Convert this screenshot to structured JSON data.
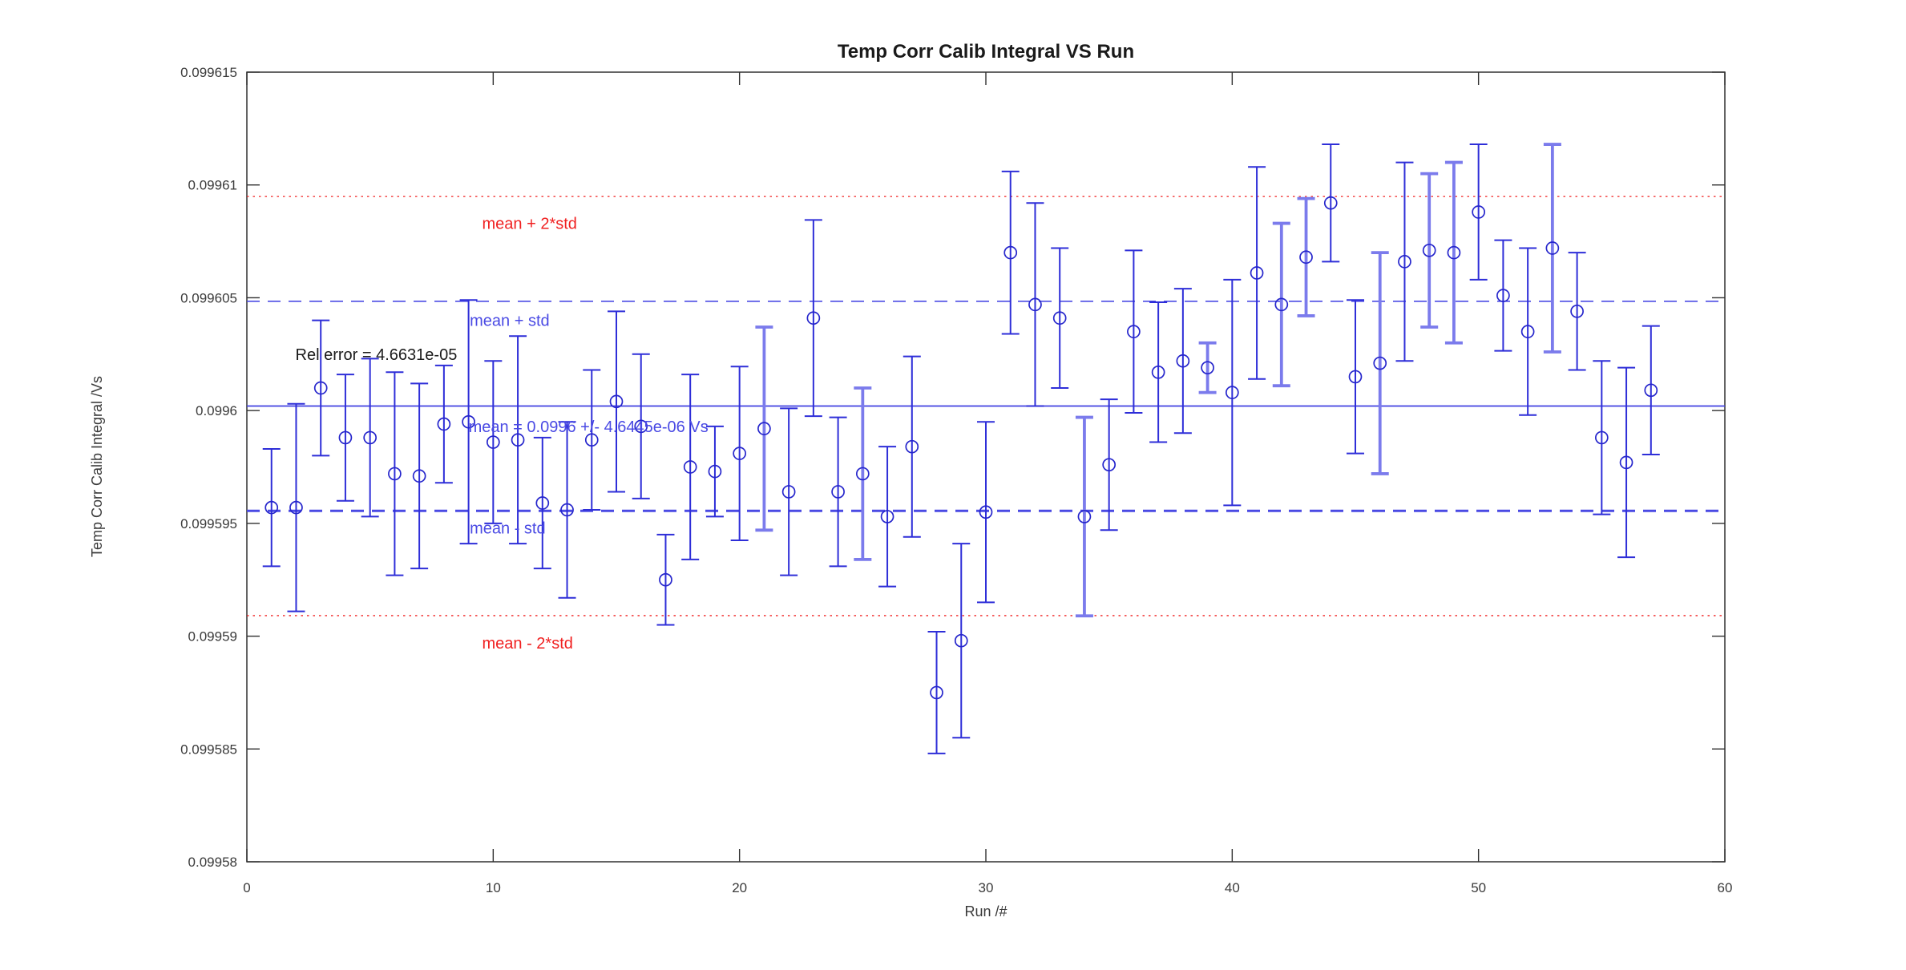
{
  "title": "Temp Corr Calib Integral VS Run",
  "xlabel": "Run /#",
  "ylabel": "Temp Corr Calib Integral /Vs",
  "colors": {
    "data_blue": "#2e2ed8",
    "thick_blue": "#7b7bec",
    "circle_blue": "#2626cc",
    "mean_line_blue": "#4040e0",
    "dash_blue": "#4a4ae4",
    "ref_red": "#f02020",
    "axis": "#303030",
    "tick_text": "#3a3a3a",
    "black_text": "#1a1a1a"
  },
  "chart_data": {
    "type": "scatter",
    "title": "Temp Corr Calib Integral VS Run",
    "xlabel": "Run /#",
    "ylabel": "Temp Corr Calib Integral /Vs",
    "xlim": [
      0,
      60
    ],
    "ylim": [
      0.09958,
      0.099615
    ],
    "x_tick_labels": [
      "0",
      "10",
      "20",
      "30",
      "40",
      "50",
      "60"
    ],
    "x_tick_values": [
      0,
      10,
      20,
      30,
      40,
      50,
      60
    ],
    "y_tick_labels": [
      "0.09958",
      "0.099585",
      "0.09959",
      "0.099595",
      "0.0996",
      "0.099605",
      "0.09961",
      "0.099615"
    ],
    "y_tick_values": [
      0.09958,
      0.099585,
      0.09959,
      0.099595,
      0.0996,
      0.099605,
      0.09961,
      0.099615
    ],
    "grid": false,
    "legend": null,
    "mean": 0.0996002,
    "std": 4.6445e-06,
    "reference_lines": [
      {
        "name": "mean-plus-2std-line",
        "value_offset_in_std": 2,
        "style": "dotted",
        "color_key": "ref_red"
      },
      {
        "name": "mean-plus-std-line",
        "value_offset_in_std": 1,
        "style": "dashed",
        "color_key": "dash_blue"
      },
      {
        "name": "mean-line",
        "value_offset_in_std": 0,
        "style": "solid",
        "color_key": "mean_line_blue"
      },
      {
        "name": "mean-minus-std-line",
        "value_offset_in_std": -1,
        "style": "dashed-thick",
        "color_key": "dash_blue"
      },
      {
        "name": "mean-minus-2std-line",
        "value_offset_in_std": -2,
        "style": "dotted",
        "color_key": "ref_red"
      }
    ],
    "x": [
      1,
      2,
      3,
      4,
      5,
      6,
      7,
      8,
      9,
      10,
      11,
      12,
      13,
      14,
      15,
      16,
      17,
      18,
      19,
      20,
      21,
      22,
      23,
      24,
      25,
      26,
      27,
      28,
      29,
      30,
      31,
      32,
      33,
      34,
      35,
      36,
      37,
      38,
      39,
      40,
      41,
      42,
      43,
      44,
      45,
      46,
      47,
      48,
      49,
      50,
      51,
      52,
      53,
      54,
      55,
      56,
      57
    ],
    "values": [
      0.0995957,
      0.0995957,
      0.099601,
      0.0995988,
      0.0995988,
      0.0995972,
      0.0995971,
      0.0995994,
      0.0995995,
      0.0995986,
      0.0995987,
      0.0995959,
      0.0995956,
      0.0995987,
      0.0996004,
      0.0995993,
      0.0995925,
      0.0995975,
      0.0995973,
      0.0995981,
      0.0995992,
      0.0995964,
      0.0996041,
      0.0995964,
      0.0995972,
      0.0995953,
      0.0995984,
      0.0995875,
      0.0995898,
      0.0995955,
      0.099607,
      0.0996047,
      0.0996041,
      0.0995953,
      0.0995976,
      0.0996035,
      0.0996017,
      0.0996022,
      0.0996019,
      0.0996008,
      0.0996061,
      0.0996047,
      0.0996068,
      0.0996092,
      0.0996015,
      0.0996021,
      0.0996066,
      0.0996071,
      0.099607,
      0.0996088,
      0.0996051,
      0.0996035,
      0.0996072,
      0.0996044,
      0.0995988,
      0.0995977,
      0.0996009
    ],
    "errors": [
      2.6e-06,
      4.6e-06,
      3e-06,
      2.8e-06,
      3.5e-06,
      4.5e-06,
      4.1e-06,
      2.6e-06,
      5.4e-06,
      3.6e-06,
      4.6e-06,
      2.9e-06,
      3.9e-06,
      3.1e-06,
      4e-06,
      3.2e-06,
      2e-06,
      4.1e-06,
      2e-06,
      3.85e-06,
      4.5e-06,
      3.7e-06,
      4.35e-06,
      3.3e-06,
      3.8e-06,
      3.1e-06,
      4e-06,
      2.7e-06,
      4.3e-06,
      4e-06,
      3.6e-06,
      4.5e-06,
      3.1e-06,
      4.4e-06,
      2.9e-06,
      3.6e-06,
      3.1e-06,
      3.2e-06,
      1.1e-06,
      5e-06,
      4.7e-06,
      3.6e-06,
      2.6e-06,
      2.6e-06,
      3.4e-06,
      4.9e-06,
      4.4e-06,
      3.4e-06,
      4e-06,
      3e-06,
      2.45e-06,
      3.7e-06,
      4.6e-06,
      2.6e-06,
      3.4e-06,
      4.2e-06,
      2.85e-06
    ],
    "thick_error_bar_runs": [
      21,
      25,
      34,
      39,
      42,
      43,
      46,
      48,
      49,
      53
    ],
    "annotations": [
      {
        "name": "rel-error-label",
        "text": "Rel error = 4.6631e-05",
        "x": 1.97,
        "y": 0.0996025,
        "color_key": "black_text"
      },
      {
        "name": "mean-plus-2std-label",
        "text": "mean + 2*std",
        "x": 9.55,
        "y": 0.0996083,
        "color_key": "ref_red"
      },
      {
        "name": "mean-plus-std-label",
        "text": "mean + std",
        "x": 9.05,
        "y": 0.099604,
        "color_key": "dash_blue"
      },
      {
        "name": "mean-value-label",
        "text": "mean = 0.0996 +/- 4.6445e-06 Vs",
        "x": 9.0,
        "y": 0.0995993,
        "color_key": "dash_blue"
      },
      {
        "name": "mean-minus-std-label",
        "text": "mean - std",
        "x": 9.05,
        "y": 0.0995948,
        "color_key": "dash_blue"
      },
      {
        "name": "mean-minus-2std-label",
        "text": "mean - 2*std",
        "x": 9.55,
        "y": 0.0995897,
        "color_key": "ref_red"
      }
    ]
  }
}
